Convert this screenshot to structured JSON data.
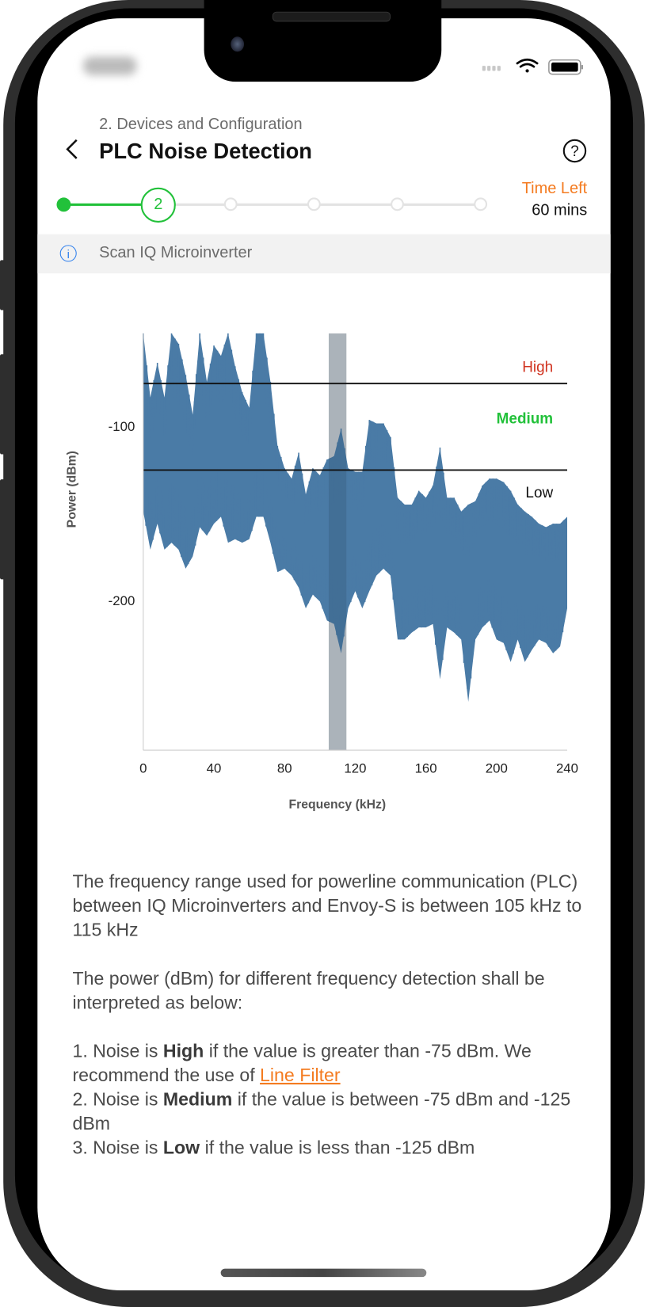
{
  "header": {
    "subtitle": "2. Devices and Configuration",
    "title": "PLC Noise Detection",
    "back_icon": "chevron-left-icon",
    "help_icon": "question-circle-icon",
    "time_left_label": "Time Left",
    "time_left_value": "60 mins"
  },
  "stepper": {
    "current_step": 2,
    "total_steps": 6,
    "current_label": "2",
    "active_color": "#22c13a",
    "inactive_color": "#e3e3e3"
  },
  "info_bar": {
    "icon": "info-circle-icon",
    "text": "Scan IQ Microinverter"
  },
  "chart_data": {
    "type": "line",
    "xlabel": "Frequency (kHz)",
    "ylabel": "Power (dBm)",
    "xlim": [
      0,
      240
    ],
    "ylim": [
      -287,
      -46
    ],
    "x_ticks": [
      "0",
      "40",
      "80",
      "120",
      "160",
      "200",
      "240"
    ],
    "y_ticks": [
      "-100",
      "-200"
    ],
    "series_color": "#4a7ba6",
    "x": [
      0,
      4,
      8,
      12,
      16,
      20,
      24,
      28,
      32,
      36,
      40,
      44,
      48,
      52,
      56,
      60,
      64,
      68,
      72,
      76,
      80,
      84,
      88,
      92,
      96,
      100,
      104,
      108,
      112,
      116,
      120,
      124,
      128,
      132,
      136,
      140,
      144,
      148,
      152,
      156,
      160,
      164,
      168,
      172,
      176,
      180,
      184,
      188,
      192,
      196,
      200,
      204,
      208,
      212,
      216,
      220,
      224,
      228,
      232,
      236,
      240
    ],
    "series": [
      {
        "values_upper_envelope": [
          -46,
          -83,
          -63,
          -83,
          -46,
          -52,
          -70,
          -93,
          -46,
          -74,
          -53,
          -59,
          -46,
          -65,
          -80,
          -89,
          -46,
          -46,
          -74,
          -111,
          -124,
          -130,
          -115,
          -139,
          -124,
          -128,
          -119,
          -117,
          -101,
          -124,
          -126,
          -126,
          -96,
          -98,
          -98,
          -106,
          -141,
          -145,
          -145,
          -137,
          -141,
          -134,
          -112,
          -141,
          -141,
          -149,
          -145,
          -143,
          -134,
          -130,
          -130,
          -132,
          -137,
          -145,
          -149,
          -152,
          -156,
          -158,
          -156,
          -156,
          -152
        ],
        "values_lower_envelope": [
          -149,
          -171,
          -156,
          -171,
          -167,
          -171,
          -182,
          -175,
          -158,
          -163,
          -156,
          -152,
          -167,
          -165,
          -167,
          -165,
          -152,
          -152,
          -167,
          -184,
          -182,
          -186,
          -193,
          -205,
          -197,
          -201,
          -212,
          -214,
          -231,
          -205,
          -195,
          -205,
          -195,
          -186,
          -182,
          -186,
          -223,
          -223,
          -219,
          -216,
          -216,
          -214,
          -246,
          -216,
          -219,
          -223,
          -259,
          -223,
          -216,
          -212,
          -223,
          -225,
          -236,
          -223,
          -236,
          -229,
          -223,
          -225,
          -231,
          -227,
          -205
        ]
      }
    ],
    "thresholds": [
      {
        "label": "High",
        "value": -75,
        "color": "#d0331f"
      },
      {
        "label": "Medium",
        "color": "#22c13a"
      },
      {
        "label": "Low",
        "value": -125,
        "color": "#111111"
      }
    ],
    "highlight_band": {
      "from": 105,
      "to": 115,
      "color": "#d6d6d6"
    },
    "grid": false
  },
  "description": {
    "p1": "The frequency range used for powerline communication (PLC) between IQ Microinverters and Envoy-S is between 105 kHz to 115 kHz",
    "p2": "The power (dBm) for different frequency detection shall be interpreted as below:",
    "l1_a": "1. Noise is ",
    "l1_b": "High",
    "l1_c": " if the value is greater than -75 dBm. We recommend the use of ",
    "l1_link": "Line Filter",
    "l2_a": "2. Noise is ",
    "l2_b": "Medium",
    "l2_c": " if the value is between -75 dBm and -125 dBm",
    "l3_a": "3. Noise is ",
    "l3_b": "Low",
    "l3_c": " if the value is less than -125 dBm"
  }
}
